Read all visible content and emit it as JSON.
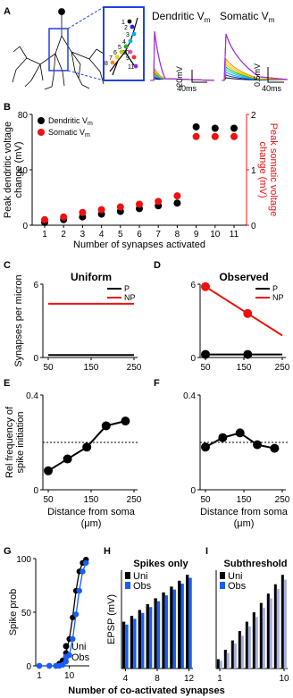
{
  "panel_letters": [
    "A",
    "B",
    "C",
    "D",
    "E",
    "F",
    "G",
    "H",
    "I"
  ],
  "panelA": {
    "trace_titles": [
      "Dendritic V",
      "Somatic V"
    ],
    "title_subscript": "m",
    "zoom_labels": [
      "1",
      "2",
      "3",
      "4",
      "5",
      "6",
      "7",
      "8",
      "9",
      "10",
      "11"
    ],
    "dend_scale_v": "20mV",
    "dend_scale_t": "40ms",
    "soma_scale_v": "0.5mV",
    "soma_scale_t": "40ms",
    "trace_colors": [
      "#000000",
      "#1f1fff",
      "#00aaff",
      "#00c0c0",
      "#22aa22",
      "#b0d000",
      "#ffd000",
      "#ff8800",
      "#ff2a2a",
      "#ff44cc",
      "#8a2be2"
    ]
  },
  "chart_data": [
    {
      "id": "B",
      "type": "scatter",
      "x": [
        1,
        2,
        3,
        4,
        5,
        6,
        7,
        8,
        9,
        10,
        11
      ],
      "xlabel": "Number of synapses activated",
      "ylabel": "Peak dendritic voltage change (mV)",
      "ylabel_lines": [
        "Peak dendritic voltage",
        "change (mV)"
      ],
      "ylabel_right": "Peak somatic voltage change (mV)",
      "ylabel_right_lines": [
        "Peak somatic voltage",
        "change (mV)"
      ],
      "ylim": [
        0,
        80
      ],
      "yticks": [
        0,
        40,
        80
      ],
      "ylim_right": [
        0,
        2
      ],
      "yticks_right": [
        0,
        1,
        2
      ],
      "series": [
        {
          "name": "Dendritic V",
          "subscript": "m",
          "color": "#000000",
          "axis": "left",
          "values": [
            2,
            4,
            6,
            8,
            10,
            12,
            14,
            16,
            71,
            70,
            70
          ]
        },
        {
          "name": "Somatic V",
          "subscript": "m",
          "color": "#ee1111",
          "axis": "right",
          "values": [
            0.1,
            0.15,
            0.23,
            0.28,
            0.33,
            0.38,
            0.43,
            0.53,
            1.6,
            1.6,
            1.6
          ]
        }
      ],
      "legend": "top-left"
    },
    {
      "id": "C",
      "type": "line",
      "title": "Uniform",
      "xlim": [
        50,
        250
      ],
      "xticks": [
        50,
        150,
        250
      ],
      "ylim": [
        0,
        6
      ],
      "yticks": [
        0,
        6
      ],
      "ylabel": "Synapses per micron",
      "series": [
        {
          "name": "P",
          "color": "#000000",
          "x": [
            50,
            250
          ],
          "values": [
            0.2,
            0.2
          ]
        },
        {
          "name": "NP",
          "color": "#ee1111",
          "x": [
            50,
            250
          ],
          "values": [
            4.4,
            4.4
          ]
        }
      ],
      "legend": "top-right"
    },
    {
      "id": "D",
      "type": "line",
      "title": "Observed",
      "xlim": [
        50,
        250
      ],
      "xticks": [
        50,
        150,
        250
      ],
      "ylim": [
        0,
        6
      ],
      "yticks": [
        0,
        6
      ],
      "series": [
        {
          "name": "P",
          "color": "#000000",
          "x": [
            50,
            160,
            250
          ],
          "values": [
            0.25,
            0.25,
            0.25
          ],
          "markers": [
            50,
            160
          ]
        },
        {
          "name": "NP",
          "color": "#ee1111",
          "x": [
            50,
            160,
            250
          ],
          "values": [
            5.8,
            3.6,
            1.8
          ],
          "markers": [
            50,
            160
          ]
        }
      ],
      "legend": "top-right"
    },
    {
      "id": "E",
      "type": "line",
      "xlim": [
        50,
        250
      ],
      "xticks": [
        50,
        150,
        250
      ],
      "ylim": [
        0,
        0.4
      ],
      "yticks": [
        0,
        0.4
      ],
      "ylabel": "Rel frequency of spike initiation",
      "ylabel_lines": [
        "Rel frequency of",
        "spike initiation"
      ],
      "xlabel": "Distance from soma (μm)",
      "xlabel_lines": [
        "Distance from soma",
        "(μm)"
      ],
      "reference_line": 0.2,
      "series": [
        {
          "name": "",
          "color": "#000000",
          "x": [
            50,
            95,
            140,
            185,
            230
          ],
          "values": [
            0.08,
            0.13,
            0.18,
            0.27,
            0.29
          ]
        }
      ]
    },
    {
      "id": "F",
      "type": "line",
      "xlim": [
        50,
        250
      ],
      "xticks": [
        50,
        150,
        250
      ],
      "ylim": [
        0,
        0.4
      ],
      "yticks": [
        0,
        0.4
      ],
      "xlabel": "Distance from soma (μm)",
      "xlabel_lines": [
        "Distance from soma",
        "(μm)"
      ],
      "reference_line": 0.2,
      "series": [
        {
          "name": "",
          "color": "#000000",
          "x": [
            50,
            95,
            140,
            185,
            230
          ],
          "values": [
            0.18,
            0.22,
            0.24,
            0.19,
            0.175
          ]
        }
      ]
    },
    {
      "id": "G",
      "type": "line",
      "xlim": [
        1,
        16
      ],
      "xticks": [
        1,
        10
      ],
      "ylim": [
        0,
        100
      ],
      "yticks": [
        0,
        50,
        100
      ],
      "ylabel": "Spike prob",
      "series": [
        {
          "name": "Uni",
          "color": "#000000",
          "x": [
            1,
            4,
            6,
            7,
            8,
            9,
            10,
            11,
            12,
            13,
            14,
            15
          ],
          "values": [
            0,
            0,
            0,
            2,
            5,
            12,
            25,
            45,
            70,
            88,
            96,
            99
          ]
        },
        {
          "name": "Obs",
          "color": "#1a5cff",
          "x": [
            1,
            4,
            6,
            7,
            8,
            9,
            10,
            11,
            12,
            13,
            14,
            15
          ],
          "values": [
            0,
            0,
            0,
            0,
            1,
            4,
            10,
            25,
            48,
            70,
            88,
            96
          ]
        }
      ],
      "legend": "bottom-right"
    },
    {
      "id": "H",
      "type": "bar",
      "title": "Spikes only",
      "categories": [
        4,
        5,
        6,
        7,
        8,
        9,
        10,
        11,
        12
      ],
      "xticks": [
        4,
        8,
        12
      ],
      "ylabel": "EPSP (mV)",
      "series": [
        {
          "name": "Uni",
          "color": "#000000",
          "values": [
            3.2,
            3.6,
            4.0,
            4.4,
            4.8,
            5.2,
            5.6,
            6.0,
            6.4
          ]
        },
        {
          "name": "Obs",
          "color": "#1a5cff",
          "values": [
            3.0,
            3.4,
            3.8,
            4.2,
            4.6,
            5.0,
            5.4,
            5.8,
            6.2
          ]
        }
      ],
      "legend": "top-left"
    },
    {
      "id": "I",
      "type": "bar",
      "title": "Subthreshold",
      "categories": [
        1,
        2,
        3,
        4,
        5,
        6,
        7,
        8,
        9,
        10
      ],
      "xticks": [
        1,
        10
      ],
      "series": [
        {
          "name": "Uni",
          "color": "#000000",
          "values": [
            0.6,
            1.2,
            1.8,
            2.4,
            3.0,
            3.6,
            4.2,
            4.8,
            5.4,
            6.0
          ]
        },
        {
          "name": "Obs",
          "color": "#1a5cff",
          "values": [
            0.5,
            1.0,
            1.6,
            2.1,
            2.7,
            3.3,
            3.9,
            4.5,
            5.1,
            5.7
          ]
        }
      ],
      "legend": "top-left"
    }
  ],
  "shared_xlabel": "Number of co-activated synapses"
}
